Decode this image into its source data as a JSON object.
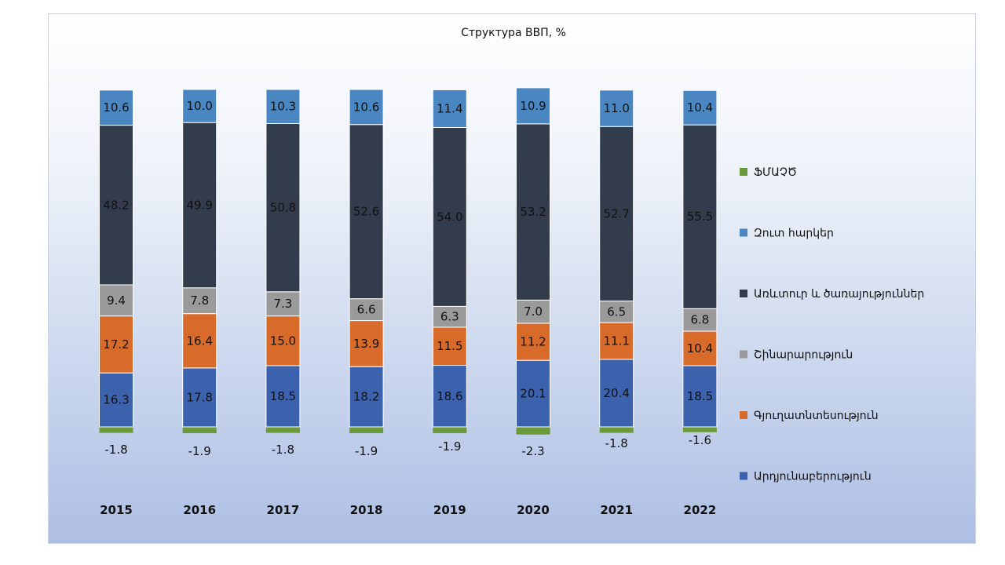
{
  "chart_data": {
    "type": "bar",
    "stacked": true,
    "title": "Структура ВВП, %",
    "categories": [
      "2015",
      "2016",
      "2017",
      "2018",
      "2019",
      "2020",
      "2021",
      "2022"
    ],
    "series": [
      {
        "name": "ՖՄԱՉԾ",
        "color": "#6a9a3a",
        "values": [
          -1.8,
          -1.9,
          -1.8,
          -1.9,
          -1.9,
          -2.3,
          -1.8,
          -1.6
        ]
      },
      {
        "name": "Արդյունաբերություն",
        "color": "#3c62ad",
        "values": [
          16.3,
          17.8,
          18.5,
          18.2,
          18.6,
          20.1,
          20.4,
          18.5
        ]
      },
      {
        "name": "Գյուղատնտեսություն",
        "color": "#d86b2a",
        "values": [
          17.2,
          16.4,
          15.0,
          13.9,
          11.5,
          11.2,
          11.1,
          10.4
        ]
      },
      {
        "name": "Շինարարություն",
        "color": "#9a9a9a",
        "values": [
          9.4,
          7.8,
          7.3,
          6.6,
          6.3,
          7.0,
          6.5,
          6.8
        ]
      },
      {
        "name": "Առևտուր և ծառայություններ",
        "color": "#333c4d",
        "values": [
          48.2,
          49.9,
          50.8,
          52.6,
          54.0,
          53.2,
          52.7,
          55.5
        ]
      },
      {
        "name": "Զուտ հարկեր",
        "color": "#4a87c2",
        "values": [
          10.6,
          10.0,
          10.3,
          10.6,
          11.4,
          10.9,
          11.0,
          10.4
        ]
      }
    ],
    "value_labels": {
      "ՖՄԱՉԾ": [
        "-1.8",
        "-1.9",
        "-1.8",
        "-1.9",
        "-1.9",
        "-2.3",
        "-1.8",
        "-1.6"
      ],
      "Արդյունաբերություն": [
        "16.3",
        "17.8",
        "18.5",
        "18.2",
        "18.6",
        "20.1",
        "20.4",
        "18.5"
      ],
      "Գյուղատնտեսություն": [
        "17.2",
        "16.4",
        "15.0",
        "13.9",
        "11.5",
        "11.2",
        "11.1",
        "10.4"
      ],
      "Շինարարություն": [
        "9.4",
        "7.8",
        "7.3",
        "6.6",
        "6.3",
        "7.0",
        "6.5",
        "6.8"
      ],
      "Առևտուր և ծառայություններ": [
        "48.2",
        "49.9",
        "50.8",
        "52.6",
        "54.0",
        "53.2",
        "52.7",
        "55.5"
      ],
      "Զուտ հարկեր": [
        "10.6",
        "10.0",
        "10.3",
        "10.6",
        "11.4",
        "10.9",
        "11.0",
        "10.4"
      ]
    },
    "legend_order": [
      "ՖՄԱՉԾ",
      "Զուտ հարկեր",
      "Առևտուր և ծառայություններ",
      "Շինարարություն",
      "Գյուղատնտեսություն",
      "Արդյունաբերություն"
    ],
    "legend_position": "right",
    "xlabel": "",
    "ylabel": "",
    "ylim": [
      -2.3,
      100
    ],
    "grid": false,
    "axes_visible": false
  }
}
